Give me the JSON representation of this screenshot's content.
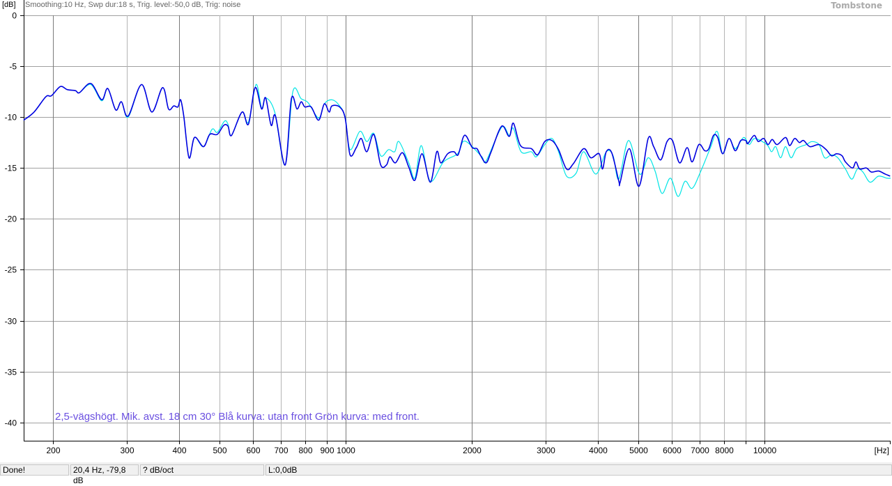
{
  "chart_data": {
    "type": "line",
    "header": "Smoothing:10 Hz, Swp dur:18 s, Trig. level:-50,0 dB, Trig: noise",
    "ylabel": "[dB]",
    "xlabel": "[Hz]",
    "logo": "Tombstone",
    "annotation": "2,5-vägshögt. Mik. avst. 18 cm 30° Blå kurva: utan front  Grön kurva: med front.",
    "x_scale": "log",
    "xlim": [
      170,
      20000
    ],
    "ylim": [
      -41.8,
      0
    ],
    "grid": true,
    "y_ticks": [
      0,
      -5,
      -10,
      -15,
      -20,
      -25,
      -30,
      -35,
      -40
    ],
    "y_tick_labels": [
      "0",
      "-5",
      "-10",
      "-15",
      "-20",
      "-25",
      "-30",
      "-35",
      "-40"
    ],
    "x_ticks": [
      200,
      300,
      400,
      500,
      600,
      700,
      800,
      900,
      1000,
      2000,
      3000,
      4000,
      5000,
      6000,
      7000,
      8000,
      9000,
      10000
    ],
    "x_tick_labels": [
      "200",
      "300",
      "400",
      "500",
      "600",
      "700",
      "800",
      "900",
      "1000",
      "2000",
      "3000",
      "4000",
      "5000",
      "6000",
      "7000",
      "8000",
      "",
      "10000"
    ],
    "series": [
      {
        "color": "#00e5e5",
        "x": [
          170,
          180,
          192,
          198,
          208,
          216,
          226,
          231,
          246,
          261,
          270,
          282,
          291,
          302,
          325,
          344,
          365,
          377,
          388,
          397,
          403,
          410,
          422,
          435,
          457,
          479,
          493,
          513,
          523,
          533,
          565,
          585,
          610,
          629,
          643,
          676,
          716,
          747,
          782,
          813,
          861,
          888,
          926,
          962,
          996,
          1023,
          1080,
          1122,
          1166,
          1211,
          1264,
          1308,
          1339,
          1413,
          1462,
          1514,
          1591,
          1711,
          1848,
          1906,
          1980,
          2113,
          2163,
          2355,
          2455,
          2512,
          2620,
          2773,
          2851,
          2985,
          3105,
          3221,
          3365,
          3548,
          3698,
          3952,
          4188,
          4347,
          4486,
          4732,
          5031,
          5272,
          5475,
          5689,
          5957,
          6213,
          6457,
          6714,
          7027,
          7441,
          7702,
          7943,
          8222,
          8511,
          8913,
          9190,
          9477,
          10120,
          10390,
          10630,
          10920,
          11220,
          11570,
          11930,
          12590,
          12980,
          13490,
          13910,
          14450,
          14960,
          15600,
          16160,
          16660,
          17180,
          17860,
          18710,
          19580,
          20000
        ],
        "y": [
          -10.3,
          -9.5,
          -8.0,
          -7.9,
          -7.0,
          -7.3,
          -7.4,
          -7.6,
          -6.8,
          -8.4,
          -7.2,
          -9.3,
          -8.5,
          -10.0,
          -6.8,
          -9.5,
          -7.1,
          -9.2,
          -8.9,
          -9.0,
          -8.3,
          -9.9,
          -14.0,
          -12.0,
          -12.9,
          -11.2,
          -11.5,
          -10.4,
          -10.7,
          -11.8,
          -9.5,
          -10.5,
          -6.8,
          -9.1,
          -8.1,
          -9.5,
          -14.7,
          -7.5,
          -8.2,
          -8.6,
          -10.1,
          -8.7,
          -8.3,
          -8.8,
          -10.0,
          -13.2,
          -11.4,
          -12.4,
          -11.6,
          -13.8,
          -13.2,
          -13.4,
          -12.4,
          -14.5,
          -16.0,
          -12.8,
          -16.3,
          -14.4,
          -13.6,
          -12.4,
          -12.7,
          -13.9,
          -14.3,
          -11.0,
          -11.8,
          -11.1,
          -13.4,
          -13.4,
          -13.9,
          -12.7,
          -12.1,
          -13.4,
          -15.8,
          -15.5,
          -13.4,
          -15.6,
          -13.4,
          -13.8,
          -16.1,
          -12.3,
          -15.6,
          -14.0,
          -15.3,
          -17.5,
          -16.0,
          -17.8,
          -16.3,
          -17.0,
          -15.4,
          -12.9,
          -11.4,
          -13.6,
          -12.1,
          -13.1,
          -12.0,
          -12.7,
          -12.1,
          -12.7,
          -13.4,
          -12.9,
          -14.0,
          -12.9,
          -14.0,
          -13.1,
          -12.7,
          -12.4,
          -12.7,
          -14.0,
          -13.7,
          -14.0,
          -15.1,
          -16.1,
          -15.1,
          -15.4,
          -16.4,
          -15.8,
          -16.0,
          -16.0
        ]
      },
      {
        "color": "#0000e0",
        "x": [
          170,
          180,
          192,
          198,
          208,
          216,
          226,
          231,
          246,
          261,
          270,
          282,
          291,
          302,
          325,
          344,
          365,
          377,
          388,
          397,
          403,
          410,
          422,
          435,
          457,
          473,
          493,
          511,
          523,
          533,
          565,
          585,
          607,
          629,
          643,
          663,
          679,
          716,
          741,
          764,
          782,
          798,
          826,
          861,
          888,
          912,
          926,
          966,
          996,
          1023,
          1059,
          1088,
          1122,
          1166,
          1211,
          1250,
          1274,
          1313,
          1365,
          1413,
          1462,
          1520,
          1591,
          1648,
          1686,
          1750,
          1812,
          1854,
          1906,
          1941,
          2004,
          2056,
          2099,
          2163,
          2223,
          2355,
          2455,
          2512,
          2612,
          2773,
          2871,
          2985,
          3105,
          3221,
          3365,
          3491,
          3698,
          3846,
          4027,
          4102,
          4188,
          4315,
          4486,
          4519,
          4753,
          5012,
          5272,
          5433,
          5649,
          5848,
          6026,
          6266,
          6531,
          6714,
          6966,
          7194,
          7362,
          7551,
          7727,
          7943,
          8222,
          8511,
          8770,
          9016,
          9120,
          9441,
          9661,
          9954,
          10190,
          10430,
          10720,
          11220,
          11480,
          11800,
          12110,
          12390,
          12830,
          13490,
          14030,
          14450,
          14860,
          15310,
          15600,
          16220,
          16530,
          16870,
          17500,
          17990,
          18710,
          19410,
          19950
        ],
        "y": [
          -10.3,
          -9.5,
          -8.0,
          -7.9,
          -7.0,
          -7.3,
          -7.4,
          -7.6,
          -6.7,
          -8.3,
          -7.2,
          -9.3,
          -8.5,
          -9.9,
          -6.8,
          -9.5,
          -7.1,
          -9.2,
          -8.9,
          -9.0,
          -8.3,
          -9.9,
          -14.0,
          -12.0,
          -12.9,
          -11.7,
          -11.7,
          -10.8,
          -10.9,
          -11.8,
          -9.5,
          -10.7,
          -7.1,
          -9.2,
          -8.1,
          -10.8,
          -9.9,
          -14.7,
          -8.2,
          -9.2,
          -8.5,
          -9.0,
          -9.0,
          -10.3,
          -8.7,
          -9.5,
          -8.9,
          -9.0,
          -10.1,
          -13.7,
          -13.0,
          -12.1,
          -13.4,
          -11.7,
          -14.7,
          -14.7,
          -13.9,
          -14.5,
          -13.5,
          -14.9,
          -16.2,
          -13.6,
          -16.4,
          -13.4,
          -14.5,
          -13.6,
          -13.4,
          -13.7,
          -12.0,
          -11.9,
          -13.0,
          -13.1,
          -13.8,
          -14.5,
          -13.4,
          -10.9,
          -11.9,
          -10.6,
          -12.8,
          -13.1,
          -13.7,
          -12.4,
          -12.3,
          -13.2,
          -15.1,
          -14.6,
          -13.1,
          -14.0,
          -13.6,
          -15.1,
          -13.4,
          -13.5,
          -16.3,
          -16.4,
          -13.1,
          -16.8,
          -12.1,
          -12.9,
          -14.2,
          -12.4,
          -12.3,
          -14.5,
          -13.0,
          -14.4,
          -12.7,
          -13.3,
          -13.1,
          -11.8,
          -12.0,
          -13.6,
          -12.1,
          -13.3,
          -12.3,
          -12.3,
          -12.6,
          -11.8,
          -12.4,
          -12.1,
          -12.7,
          -12.2,
          -12.7,
          -12.0,
          -12.8,
          -12.1,
          -12.5,
          -12.3,
          -12.9,
          -12.7,
          -13.2,
          -13.8,
          -13.6,
          -13.8,
          -14.4,
          -15.0,
          -14.4,
          -15.1,
          -15.0,
          -15.4,
          -15.3,
          -15.6,
          -15.8
        ]
      }
    ],
    "annotation_color": "#6a4fe0"
  },
  "status": {
    "state": "Done!",
    "cursor": "20,4 Hz, -79,8 dB",
    "slope": "? dB/oct",
    "level": "L:0,0dB"
  }
}
